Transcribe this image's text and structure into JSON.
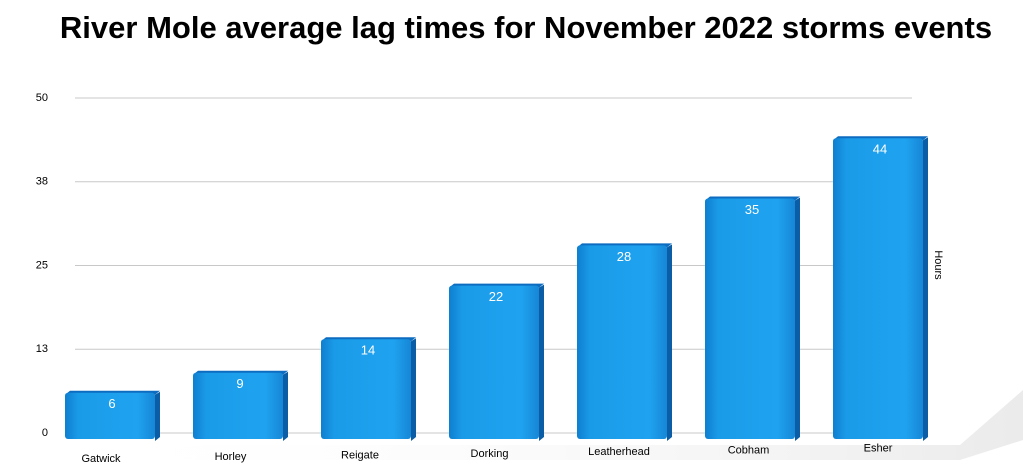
{
  "chart_data": {
    "type": "bar",
    "title": "River Mole average lag times for November 2022 storms events",
    "y_label": "Hours",
    "categories": [
      "Gatwick",
      "Horley",
      "Reigate",
      "Dorking",
      "Leatherhead",
      "Cobham",
      "Esher"
    ],
    "values": [
      6,
      9,
      14,
      22,
      28,
      35,
      44
    ],
    "color": "#1a9be8",
    "ylim": [
      0,
      50
    ],
    "yticks": [
      0,
      {
        "value": 12.5,
        "label": "13"
      },
      25,
      {
        "value": 37.5,
        "label": "38"
      },
      50
    ],
    "grid": true
  }
}
